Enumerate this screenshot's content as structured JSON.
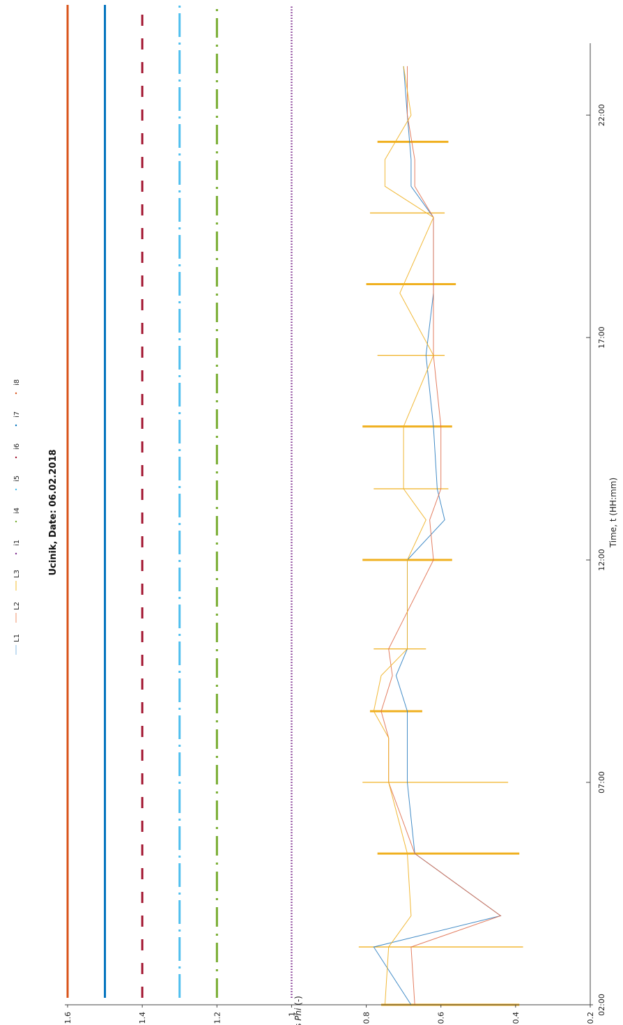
{
  "chart_data": {
    "type": "line",
    "title": "Ucinik, Date: 06.02.2018",
    "xlabel": "Time, t (HH:mm)",
    "ylabel_prefix": "cos ",
    "ylabel_italic": "Phi",
    "ylabel_suffix": " (-)",
    "ylim": [
      0.2,
      1.6
    ],
    "xlim_hours": [
      2,
      24.4
    ],
    "y_ticks": [
      {
        "v": 0.2,
        "label": "0.2"
      },
      {
        "v": 0.4,
        "label": "0.4"
      },
      {
        "v": 0.6,
        "label": "0.6"
      },
      {
        "v": 0.8,
        "label": "0.8"
      },
      {
        "v": 1.0,
        "label": "1"
      },
      {
        "v": 1.2,
        "label": "1.2"
      },
      {
        "v": 1.4,
        "label": "1.4"
      },
      {
        "v": 1.6,
        "label": "1.6"
      }
    ],
    "x_ticks": [
      {
        "v": 2,
        "label": "02:00"
      },
      {
        "v": 7,
        "label": "07:00"
      },
      {
        "v": 12,
        "label": "12:00"
      },
      {
        "v": 17,
        "label": "17:00"
      },
      {
        "v": 22,
        "label": "22:00"
      }
    ],
    "legend": [
      {
        "name": "L1",
        "color": "#9cc8e8",
        "style": "line"
      },
      {
        "name": "L2",
        "color": "#f2a383",
        "style": "line"
      },
      {
        "name": "L3",
        "color": "#f5c850",
        "style": "line"
      },
      {
        "name": "i1",
        "color": "#7e2f8e",
        "style": "dot"
      },
      {
        "name": "i4",
        "color": "#77ac30",
        "style": "dot"
      },
      {
        "name": "i5",
        "color": "#4dbeee",
        "style": "dot"
      },
      {
        "name": "i6",
        "color": "#a2142f",
        "style": "dot"
      },
      {
        "name": "i7",
        "color": "#0072bd",
        "style": "dot"
      },
      {
        "name": "i8",
        "color": "#d95319",
        "style": "dot"
      }
    ],
    "series": [
      {
        "name": "L1",
        "color": "#2f7fc1",
        "x": [
          2.0,
          3.3,
          4.0,
          5.4,
          7.0,
          8.0,
          8.6,
          9.4,
          10.0,
          12.0,
          12.9,
          13.6,
          15.0,
          16.6,
          18.0,
          19.7,
          20.4,
          21.0,
          22.0,
          23.1
        ],
        "y": [
          0.68,
          0.78,
          0.44,
          0.67,
          0.69,
          0.69,
          0.69,
          0.72,
          0.69,
          0.69,
          0.59,
          0.61,
          0.62,
          0.64,
          0.62,
          0.62,
          0.68,
          0.68,
          0.69,
          0.7
        ]
      },
      {
        "name": "L2",
        "color": "#e07050",
        "x": [
          2.0,
          3.3,
          4.0,
          5.4,
          7.0,
          8.0,
          8.6,
          9.4,
          10.0,
          12.0,
          12.9,
          13.6,
          15.0,
          16.6,
          18.0,
          19.7,
          20.4,
          21.0,
          22.0,
          23.1
        ],
        "y": [
          0.67,
          0.68,
          0.44,
          0.67,
          0.74,
          0.74,
          0.76,
          0.73,
          0.74,
          0.62,
          0.63,
          0.6,
          0.6,
          0.62,
          0.62,
          0.62,
          0.67,
          0.67,
          0.69,
          0.69
        ]
      },
      {
        "name": "L3",
        "color": "#f0b020",
        "x": [
          2.0,
          3.3,
          4.0,
          5.4,
          7.0,
          8.0,
          8.6,
          9.4,
          10.0,
          12.0,
          12.9,
          13.6,
          15.0,
          16.6,
          18.0,
          19.7,
          20.4,
          21.0,
          22.0,
          23.1
        ],
        "y": [
          0.75,
          0.74,
          0.68,
          0.69,
          0.74,
          0.74,
          0.78,
          0.76,
          0.69,
          0.69,
          0.64,
          0.7,
          0.7,
          0.62,
          0.71,
          0.62,
          0.75,
          0.75,
          0.68,
          0.7
        ]
      }
    ],
    "spikes": {
      "color": "#f0b020",
      "items": [
        {
          "t": 2.0,
          "top": 0.76,
          "bottom": 0.39,
          "thick": true
        },
        {
          "t": 3.3,
          "top": 0.82,
          "bottom": 0.38,
          "thick": false
        },
        {
          "t": 5.4,
          "top": 0.77,
          "bottom": 0.39,
          "thick": true
        },
        {
          "t": 7.0,
          "top": 0.81,
          "bottom": 0.42,
          "thick": false
        },
        {
          "t": 8.6,
          "top": 0.79,
          "bottom": 0.65,
          "thick": true
        },
        {
          "t": 10.0,
          "top": 0.78,
          "bottom": 0.64,
          "thick": false
        },
        {
          "t": 12.0,
          "top": 0.81,
          "bottom": 0.57,
          "thick": true
        },
        {
          "t": 13.6,
          "top": 0.78,
          "bottom": 0.58,
          "thick": false
        },
        {
          "t": 15.0,
          "top": 0.81,
          "bottom": 0.57,
          "thick": true
        },
        {
          "t": 16.6,
          "top": 0.77,
          "bottom": 0.59,
          "thick": false
        },
        {
          "t": 18.2,
          "top": 0.8,
          "bottom": 0.56,
          "thick": true
        },
        {
          "t": 19.8,
          "top": 0.79,
          "bottom": 0.59,
          "thick": false
        },
        {
          "t": 21.4,
          "top": 0.77,
          "bottom": 0.58,
          "thick": true
        }
      ]
    },
    "indicators": [
      {
        "name": "i8",
        "level": 1.6,
        "color": "#d95319",
        "pattern": "solid"
      },
      {
        "name": "i7",
        "level": 1.5,
        "color": "#0072bd",
        "pattern": "solid"
      },
      {
        "name": "i6",
        "level": 1.4,
        "color": "#a2142f",
        "pattern": "dash"
      },
      {
        "name": "i5",
        "level": 1.3,
        "color": "#4dbeee",
        "pattern": "dashdot"
      },
      {
        "name": "i4",
        "level": 1.2,
        "color": "#77ac30",
        "pattern": "dashdot2"
      },
      {
        "name": "i1",
        "level": 1.0,
        "color": "#7e2f8e",
        "pattern": "dotted"
      }
    ]
  }
}
